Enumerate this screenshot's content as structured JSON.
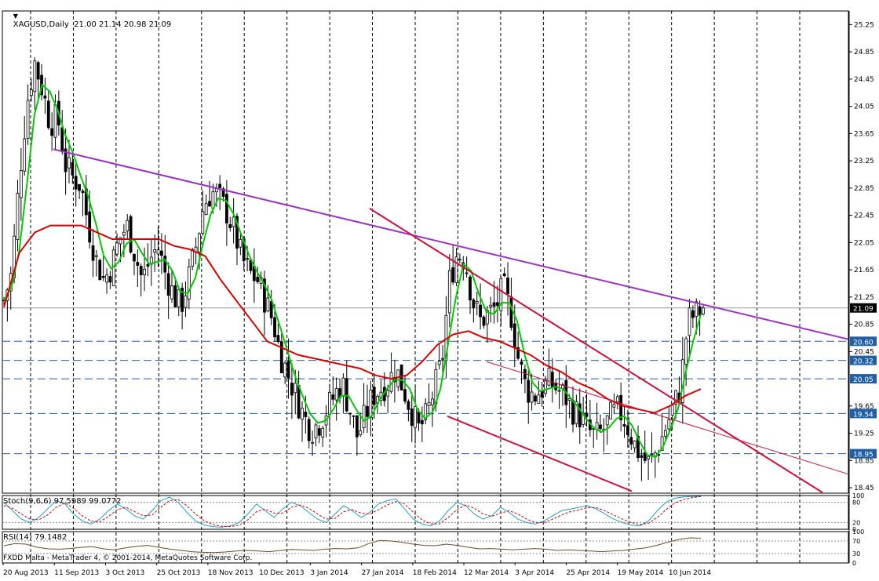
{
  "window": {
    "symbol_header": "XAGUSD,Daily  21.00 21.14 20.98 21.09",
    "copyright": "FXDD Malta - MetaTrader 4, © 2001-2014, MetaQuotes Software Corp.",
    "arrow_glyph": "▼"
  },
  "colors": {
    "background": "#ffffff",
    "grid": "#000000",
    "candle": "#000000",
    "ma_fast": "#00cc00",
    "ma_slow": "#dd0000",
    "purple_trendline": "#9b30c8",
    "red_trendline": "#d0103a",
    "level_line": "#1f5fa8",
    "stoch_main": "#1ea0d0",
    "stoch_signal": "#dd0000",
    "rsi_line": "#7a4a1e"
  },
  "chart_data": [
    {
      "type": "candlestick",
      "pane": "main",
      "title": "XAGUSD,Daily",
      "ohlc_last": {
        "open": 21.0,
        "high": 21.14,
        "low": 20.98,
        "close": 21.09
      },
      "y_ticks": [
        "25.25",
        "24.85",
        "24.45",
        "24.05",
        "23.65",
        "23.25",
        "22.85",
        "22.45",
        "22.05",
        "21.65",
        "21.25",
        "20.85",
        "20.45",
        "19.65",
        "19.25",
        "18.85",
        "18.45"
      ],
      "ylim": [
        18.37,
        25.45
      ],
      "current_price_label": "21.09",
      "horizontal_levels": [
        "20.60",
        "20.32",
        "20.05",
        "19.54",
        "18.95"
      ],
      "x_labels": [
        "20 Aug 2013",
        "11 Sep 2013",
        "3 Oct 2013",
        "25 Oct 2013",
        "18 Nov 2013",
        "10 Dec 2013",
        "3 Jan 2014",
        "27 Jan 2014",
        "18 Feb 2014",
        "12 Mar 2014",
        "3 Apr 2014",
        "25 Apr 2014",
        "19 May 2014",
        "10 Jun 2014"
      ],
      "series": [
        {
          "values": [
            21.2,
            21.6,
            23.0,
            24.1,
            24.7,
            24.3,
            23.8,
            23.9,
            23.2,
            23.0,
            22.9,
            22.3,
            21.8,
            21.5,
            21.7,
            22.1,
            22.3,
            21.9,
            21.5,
            21.8,
            22.0,
            21.6,
            21.3,
            21.1,
            21.5,
            22.0,
            22.6,
            22.8,
            22.7,
            22.5,
            22.2,
            21.8,
            21.6,
            21.5,
            21.2,
            20.9,
            20.4,
            20.1,
            19.8,
            19.5,
            19.3,
            19.4,
            19.6,
            19.8,
            20.0,
            19.6,
            19.2,
            19.5,
            19.8,
            19.9,
            20.0,
            20.2,
            19.9,
            19.6,
            19.3,
            19.5,
            19.9,
            20.3,
            21.5,
            21.9,
            21.8,
            21.2,
            20.9,
            21.0,
            21.1,
            21.4,
            21.0,
            20.3,
            19.9,
            19.8,
            19.9,
            20.0,
            19.9,
            19.8,
            19.6,
            19.5,
            19.3,
            19.2,
            19.3,
            19.5,
            19.6,
            19.4,
            19.1,
            18.9,
            18.8,
            19.0,
            19.3,
            19.6,
            19.9,
            20.9,
            21.0,
            21.09
          ]
        },
        {
          "values": [
            21.1,
            21.9,
            22.2,
            22.3,
            22.3,
            22.3,
            22.2,
            22.1,
            22.1,
            22.1,
            22.1,
            22.0,
            21.95,
            21.85,
            21.5,
            21.2,
            20.9,
            20.6,
            20.5,
            20.4,
            20.35,
            20.3,
            20.25,
            20.2,
            20.1,
            20.05,
            20.1,
            20.3,
            20.55,
            20.7,
            20.75,
            20.65,
            20.6,
            20.5,
            20.4,
            20.25,
            20.15,
            20.0,
            19.9,
            19.75,
            19.65,
            19.6,
            19.55,
            19.65,
            19.8,
            19.9
          ]
        }
      ]
    },
    {
      "type": "line",
      "pane": "stochastic",
      "title": "Stoch(9,6,6) 97.5989 99.0772",
      "y_ticks": [
        "100",
        "80",
        "20",
        "0"
      ],
      "ylim": [
        0,
        100
      ],
      "series": [
        {
          "values": [
            80,
            55,
            30,
            20,
            35,
            60,
            85,
            75,
            45,
            25,
            15,
            30,
            55,
            75,
            60,
            40,
            30,
            55,
            85,
            95,
            80,
            50,
            25,
            12,
            8,
            6,
            10,
            20,
            45,
            75,
            55,
            35,
            60,
            80,
            70,
            50,
            30,
            20,
            45,
            70,
            55,
            35,
            50,
            75,
            85,
            90,
            60,
            30,
            15,
            10,
            25,
            55,
            80,
            70,
            45,
            30,
            40,
            65,
            50,
            30,
            20,
            15,
            25,
            40,
            55,
            60,
            65,
            70,
            60,
            45,
            30,
            20,
            12,
            10,
            25,
            55,
            80,
            92,
            96,
            97,
            98
          ]
        },
        {
          "values": [
            70,
            62,
            45,
            30,
            28,
            42,
            65,
            78,
            62,
            40,
            24,
            22,
            38,
            58,
            65,
            52,
            40,
            42,
            65,
            85,
            88,
            70,
            45,
            25,
            14,
            9,
            8,
            12,
            28,
            52,
            60,
            48,
            48,
            65,
            72,
            62,
            45,
            30,
            32,
            52,
            58,
            48,
            45,
            58,
            72,
            82,
            75,
            50,
            28,
            16,
            16,
            35,
            58,
            72,
            62,
            45,
            38,
            48,
            55,
            45,
            30,
            20,
            20,
            30,
            42,
            52,
            58,
            64,
            64,
            55,
            42,
            30,
            20,
            14,
            18,
            35,
            58,
            78,
            88,
            94,
            97
          ]
        }
      ]
    },
    {
      "type": "line",
      "pane": "rsi",
      "title": "RSI(14) 79.1482",
      "y_ticks": [
        "100",
        "70",
        "30",
        "0"
      ],
      "ylim": [
        0,
        100
      ],
      "series": [
        {
          "values": [
            55,
            62,
            60,
            50,
            45,
            44,
            46,
            50,
            52,
            45,
            42,
            48,
            53,
            56,
            50,
            44,
            40,
            36,
            34,
            33,
            35,
            38,
            40,
            38,
            36,
            40,
            43,
            42,
            40,
            44,
            46,
            45,
            48,
            62,
            72,
            70,
            66,
            60,
            56,
            55,
            60,
            56,
            50,
            45,
            46,
            44,
            42,
            44,
            46,
            44,
            40,
            42,
            40,
            38,
            36,
            38,
            40,
            44,
            48,
            56,
            66,
            75,
            80,
            79
          ]
        }
      ]
    }
  ]
}
